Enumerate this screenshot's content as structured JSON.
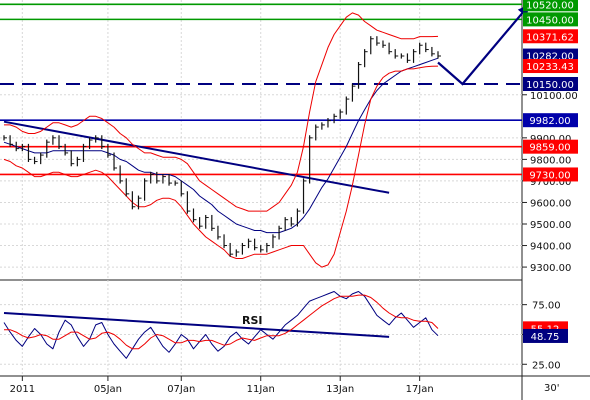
{
  "chart_data": [
    {
      "type": "line",
      "title": "",
      "xlabel": "",
      "ylabel": "",
      "ylim": [
        9240,
        10540
      ],
      "x_ticks": [
        "2011",
        "05Jan",
        "07Jan",
        "11Jan",
        "13Jan",
        "17Jan"
      ],
      "y_ticks": [
        9300,
        9400,
        9500,
        9600,
        9700,
        9800,
        9900,
        10100
      ],
      "y_tick_labels": [
        "9300.00",
        "9400.00",
        "9500.00",
        "9600.00",
        "9700.00",
        "9800.00",
        "9900.00",
        "10100.00"
      ],
      "levels": [
        {
          "value": 10520,
          "label": "10520.00",
          "color": "#009900",
          "style": "solid"
        },
        {
          "value": 10450,
          "label": "10450.00",
          "color": "#009900",
          "style": "solid"
        },
        {
          "value": 10150,
          "label": "10150.00",
          "color": "#000080",
          "style": "dashed"
        },
        {
          "value": 9982,
          "label": "9982.00",
          "color": "#0000aa",
          "style": "solid"
        },
        {
          "value": 9859,
          "label": "9859.00",
          "color": "#ff0000",
          "style": "solid"
        },
        {
          "value": 9730,
          "label": "9730.00",
          "color": "#ff0000",
          "style": "solid"
        }
      ],
      "price_flags": [
        {
          "value": 10371.62,
          "label": "10371.62",
          "color": "#ff0000"
        },
        {
          "value": 10282,
          "label": "10282.00",
          "color": "#000080"
        },
        {
          "value": 10233.43,
          "label": "10233.43",
          "color": "#ff0000"
        }
      ],
      "trendline": {
        "from": {
          "x": 0,
          "y": 9975
        },
        "to": {
          "x": 63,
          "y": 9645
        },
        "color": "#000080"
      },
      "projection": {
        "points": [
          {
            "x": 71,
            "y": 10250
          },
          {
            "x": 75,
            "y": 10150
          },
          {
            "x": 86,
            "y": 10520
          }
        ],
        "color": "#000080"
      },
      "x": [
        0,
        1,
        2,
        3,
        4,
        5,
        6,
        7,
        8,
        9,
        10,
        11,
        12,
        13,
        14,
        15,
        16,
        17,
        18,
        19,
        20,
        21,
        22,
        23,
        24,
        25,
        26,
        27,
        28,
        29,
        30,
        31,
        32,
        33,
        34,
        35,
        36,
        37,
        38,
        39,
        40,
        41,
        42,
        43,
        44,
        45,
        46,
        47,
        48,
        49,
        50,
        51,
        52,
        53,
        54,
        55,
        56,
        57,
        58,
        59,
        60,
        61,
        62,
        63,
        64,
        65,
        66,
        67,
        68,
        69,
        70,
        71
      ],
      "series": [
        {
          "role": "price",
          "color": "#111111",
          "values": [
            9900,
            9870,
            9850,
            9860,
            9800,
            9790,
            9820,
            9880,
            9900,
            9860,
            9830,
            9780,
            9800,
            9860,
            9890,
            9900,
            9860,
            9820,
            9760,
            9700,
            9640,
            9580,
            9620,
            9700,
            9730,
            9700,
            9720,
            9690,
            9690,
            9640,
            9560,
            9520,
            9490,
            9530,
            9480,
            9440,
            9400,
            9360,
            9370,
            9400,
            9420,
            9390,
            9380,
            9400,
            9440,
            9480,
            9520,
            9500,
            9560,
            9700,
            9900,
            9950,
            9960,
            9980,
            10000,
            10020,
            10080,
            10140,
            10240,
            10300,
            10360,
            10340,
            10330,
            10300,
            10280,
            10280,
            10260,
            10300,
            10330,
            10310,
            10290,
            10280
          ]
        },
        {
          "role": "ma",
          "color": "#000080",
          "values": [
            9880,
            9870,
            9860,
            9850,
            9840,
            9830,
            9830,
            9830,
            9840,
            9840,
            9840,
            9840,
            9840,
            9840,
            9840,
            9840,
            9840,
            9830,
            9820,
            9800,
            9790,
            9770,
            9750,
            9740,
            9740,
            9730,
            9730,
            9730,
            9720,
            9700,
            9680,
            9660,
            9630,
            9610,
            9590,
            9560,
            9540,
            9520,
            9500,
            9490,
            9480,
            9470,
            9470,
            9460,
            9460,
            9460,
            9470,
            9480,
            9500,
            9530,
            9570,
            9620,
            9670,
            9710,
            9760,
            9810,
            9860,
            9920,
            9980,
            10030,
            10080,
            10120,
            10150,
            10170,
            10190,
            10210,
            10220,
            10230,
            10240,
            10250,
            10260,
            10270
          ]
        },
        {
          "role": "band-upper",
          "color": "#ee0000",
          "values": [
            9960,
            9960,
            9950,
            9930,
            9920,
            9920,
            9930,
            9950,
            9970,
            9970,
            9960,
            9950,
            9960,
            9980,
            10000,
            10000,
            9990,
            9970,
            9950,
            9920,
            9900,
            9870,
            9850,
            9830,
            9830,
            9820,
            9810,
            9810,
            9810,
            9800,
            9780,
            9740,
            9700,
            9680,
            9660,
            9640,
            9620,
            9600,
            9580,
            9570,
            9560,
            9560,
            9560,
            9560,
            9580,
            9600,
            9640,
            9680,
            9740,
            9860,
            10020,
            10160,
            10240,
            10320,
            10380,
            10420,
            10460,
            10480,
            10470,
            10440,
            10420,
            10400,
            10390,
            10380,
            10370,
            10360,
            10360,
            10360,
            10370,
            10370,
            10370,
            10371
          ]
        },
        {
          "role": "band-lower",
          "color": "#ee0000",
          "values": [
            9800,
            9790,
            9770,
            9760,
            9740,
            9720,
            9720,
            9730,
            9740,
            9740,
            9730,
            9720,
            9720,
            9730,
            9740,
            9750,
            9740,
            9720,
            9690,
            9660,
            9630,
            9600,
            9580,
            9580,
            9590,
            9610,
            9620,
            9620,
            9610,
            9580,
            9540,
            9500,
            9470,
            9440,
            9420,
            9400,
            9380,
            9350,
            9340,
            9340,
            9350,
            9360,
            9360,
            9360,
            9370,
            9380,
            9390,
            9400,
            9400,
            9400,
            9360,
            9320,
            9300,
            9310,
            9360,
            9460,
            9560,
            9680,
            9820,
            9960,
            10080,
            10140,
            10180,
            10200,
            10210,
            10210,
            10220,
            10220,
            10225,
            10230,
            10232,
            10233
          ]
        }
      ]
    },
    {
      "type": "line",
      "title": "RSI",
      "ylim": [
        16,
        94
      ],
      "y_ticks": [
        25,
        50,
        75
      ],
      "y_tick_labels": [
        "25.00",
        "50.00",
        "75.00"
      ],
      "x": [
        0,
        1,
        2,
        3,
        4,
        5,
        6,
        7,
        8,
        9,
        10,
        11,
        12,
        13,
        14,
        15,
        16,
        17,
        18,
        19,
        20,
        21,
        22,
        23,
        24,
        25,
        26,
        27,
        28,
        29,
        30,
        31,
        32,
        33,
        34,
        35,
        36,
        37,
        38,
        39,
        40,
        41,
        42,
        43,
        44,
        45,
        46,
        47,
        48,
        49,
        50,
        51,
        52,
        53,
        54,
        55,
        56,
        57,
        58,
        59,
        60,
        61,
        62,
        63,
        64,
        65,
        66,
        67,
        68,
        69,
        70,
        71
      ],
      "trendline": {
        "from": {
          "x": 0,
          "y": 68
        },
        "to": {
          "x": 63,
          "y": 48
        },
        "color": "#000080"
      },
      "price_flags": [
        {
          "value": 55.12,
          "label": "55.12",
          "color": "#ff0000"
        },
        {
          "value": 48.75,
          "label": "48.75",
          "color": "#000080"
        }
      ],
      "series": [
        {
          "role": "rsi",
          "color": "#000080",
          "values": [
            60,
            52,
            45,
            40,
            48,
            55,
            50,
            42,
            38,
            52,
            62,
            58,
            48,
            40,
            46,
            58,
            60,
            50,
            42,
            36,
            30,
            38,
            46,
            52,
            56,
            48,
            40,
            35,
            42,
            50,
            46,
            38,
            44,
            50,
            42,
            36,
            40,
            48,
            52,
            46,
            42,
            48,
            54,
            50,
            46,
            52,
            58,
            62,
            66,
            72,
            78,
            80,
            82,
            84,
            86,
            82,
            80,
            84,
            86,
            82,
            74,
            66,
            62,
            58,
            64,
            68,
            62,
            56,
            60,
            64,
            54,
            49
          ]
        },
        {
          "role": "rsi-signal",
          "color": "#ee0000",
          "values": [
            54,
            54,
            52,
            49,
            47,
            48,
            50,
            49,
            46,
            46,
            49,
            52,
            52,
            49,
            46,
            47,
            51,
            52,
            50,
            46,
            41,
            38,
            38,
            42,
            47,
            50,
            49,
            46,
            43,
            43,
            45,
            45,
            44,
            45,
            45,
            43,
            41,
            42,
            45,
            47,
            46,
            45,
            47,
            49,
            49,
            49,
            51,
            54,
            58,
            62,
            66,
            70,
            74,
            77,
            80,
            82,
            82,
            82,
            83,
            83,
            81,
            77,
            72,
            68,
            65,
            64,
            64,
            62,
            61,
            61,
            60,
            55
          ]
        }
      ]
    }
  ],
  "bottom_axis": {
    "labels": [
      {
        "x": 3,
        "text": "2011"
      },
      {
        "x": 17,
        "text": "05Jan"
      },
      {
        "x": 29,
        "text": "07Jan"
      },
      {
        "x": 42,
        "text": "11Jan"
      },
      {
        "x": 55,
        "text": "13Jan"
      },
      {
        "x": 68,
        "text": "17Jan"
      }
    ],
    "timeframe": "30'"
  },
  "colors": {
    "price": "#111111",
    "ma": "#000080",
    "band": "#ee0000",
    "support_red": "#ff0000",
    "resistance_green": "#009900",
    "navy": "#000080"
  }
}
